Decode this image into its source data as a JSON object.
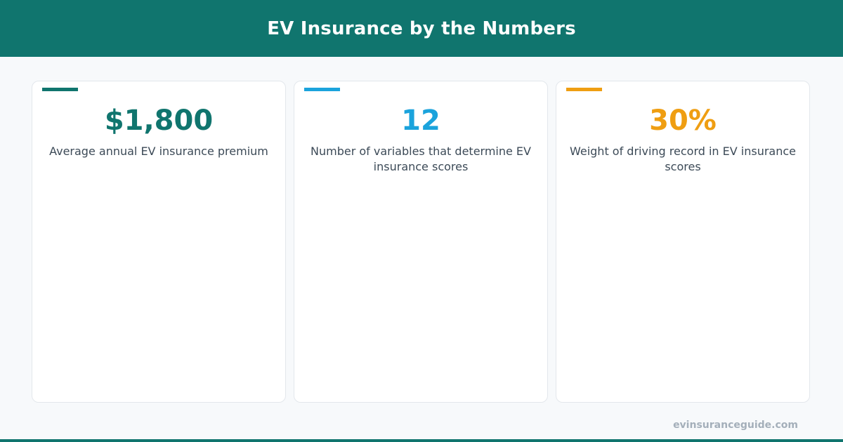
{
  "header": {
    "title": "EV Insurance by the Numbers"
  },
  "stats": [
    {
      "value": "$1,800",
      "label": "Average annual EV insurance premium",
      "color": "#10756e"
    },
    {
      "value": "12",
      "label": "Number of variables that determine EV insurance scores",
      "color": "#1ba3dc"
    },
    {
      "value": "30%",
      "label": "Weight of driving record in EV insurance scores",
      "color": "#ef9e12"
    }
  ],
  "footer": {
    "site": "evinsuranceguide.com"
  },
  "colors": {
    "brand": "#10756e",
    "background": "#f7f9fb",
    "card": "#ffffff",
    "label_text": "#3c4a57",
    "muted_text": "#a4afba"
  }
}
